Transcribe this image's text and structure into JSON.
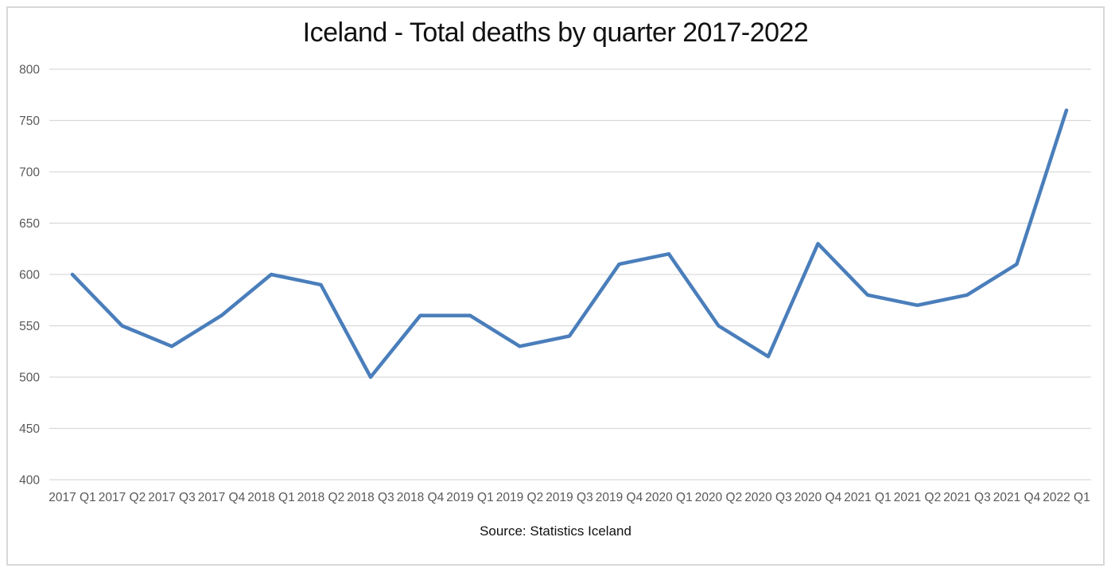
{
  "page_title": "Iceland - Total deaths by quarter 2017-2022",
  "source_note": "Source: Statistics Iceland",
  "chart_data": {
    "type": "line",
    "title": "Iceland - Total deaths by quarter 2017-2022",
    "categories": [
      "2017 Q1",
      "2017 Q2",
      "2017 Q3",
      "2017 Q4",
      "2018 Q1",
      "2018 Q2",
      "2018 Q3",
      "2018 Q4",
      "2019 Q1",
      "2019 Q2",
      "2019 Q3",
      "2019 Q4",
      "2020 Q1",
      "2020 Q2",
      "2020 Q3",
      "2020 Q4",
      "2021 Q1",
      "2021 Q2",
      "2021 Q3",
      "2021 Q4",
      "2022 Q1"
    ],
    "values": [
      600,
      550,
      530,
      560,
      600,
      590,
      500,
      560,
      560,
      530,
      540,
      610,
      620,
      550,
      520,
      630,
      580,
      570,
      580,
      610,
      760
    ],
    "xlabel": "",
    "ylabel": "",
    "ylim": [
      400,
      800
    ],
    "ytick_step": 50,
    "grid": true,
    "legend_position": "none",
    "annotation": "Source: Statistics Iceland",
    "colors": {
      "line": "#4a7ebb",
      "gridline": "#d9d9d9",
      "tick_label": "#595959",
      "title_text": "#111111",
      "frame_border": "#d8d8d8",
      "background": "#ffffff"
    }
  }
}
